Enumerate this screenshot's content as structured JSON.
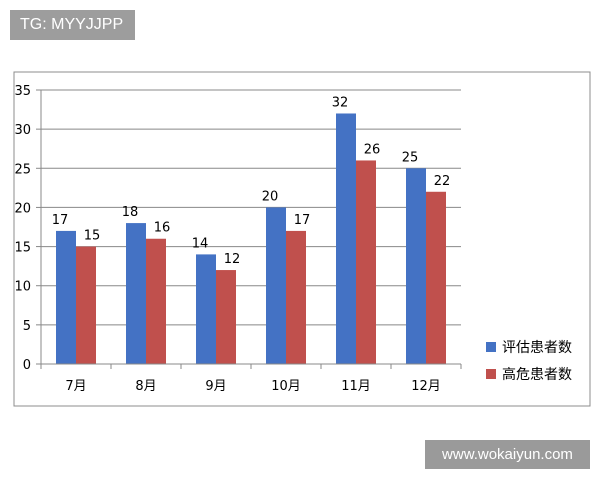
{
  "watermarks": {
    "top": "TG: MYYJJPP",
    "bottom": "www.wokaiyun.com"
  },
  "chart_data": {
    "type": "bar",
    "title": "",
    "xlabel": "",
    "ylabel": "",
    "categories": [
      "7月",
      "8月",
      "9月",
      "10月",
      "11月",
      "12月"
    ],
    "series": [
      {
        "name": "评估患者数",
        "color": "#4472c4",
        "values": [
          17,
          18,
          14,
          20,
          32,
          25
        ]
      },
      {
        "name": "高危患者数",
        "color": "#c0504d",
        "values": [
          15,
          16,
          12,
          17,
          26,
          22
        ]
      }
    ],
    "ylim": [
      0,
      35
    ],
    "yticks": [
      0,
      5,
      10,
      15,
      20,
      25,
      30,
      35
    ],
    "grid": true,
    "legend_position": "right"
  }
}
